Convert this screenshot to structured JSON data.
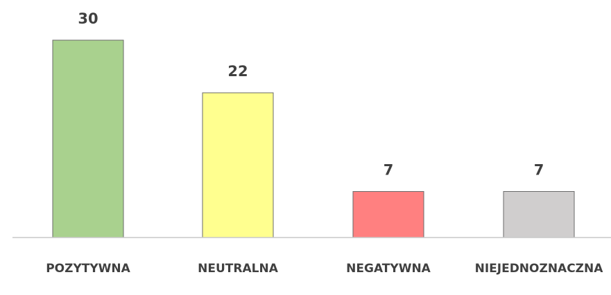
{
  "chart_data": {
    "type": "bar",
    "categories": [
      "POZYTYWNA",
      "NEUTRALNA",
      "NEGATYWNA",
      "NIEJEDNOZNACZNA"
    ],
    "values": [
      30,
      22,
      7,
      7
    ],
    "colors": [
      "#a9d18e",
      "#ffff8f",
      "#ff8080",
      "#d0cece"
    ],
    "ylim": [
      0,
      30
    ],
    "grid": false,
    "legend": "none",
    "data_labels": true
  }
}
